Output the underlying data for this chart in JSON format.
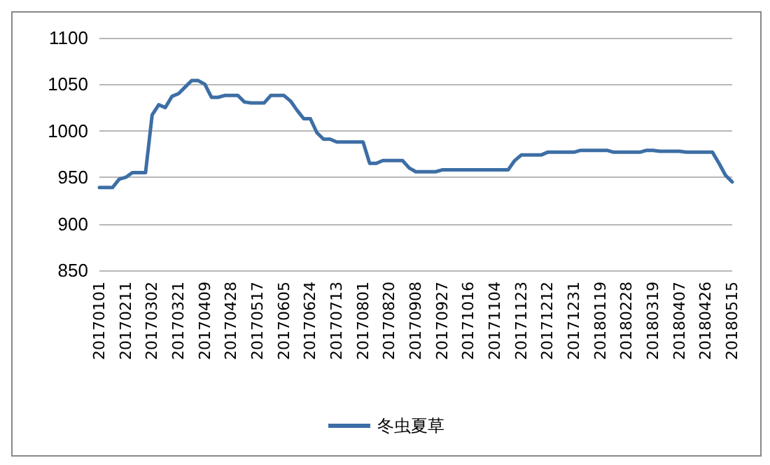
{
  "chart_data": {
    "type": "line",
    "categories": [
      "20170101",
      null,
      null,
      null,
      "20170211",
      null,
      null,
      null,
      "20170302",
      null,
      null,
      null,
      "20170321",
      null,
      null,
      null,
      "20170409",
      null,
      null,
      null,
      "20170428",
      null,
      null,
      null,
      "20170517",
      null,
      null,
      null,
      "20170605",
      null,
      null,
      null,
      "20170624",
      null,
      null,
      null,
      "20170713",
      null,
      null,
      null,
      "20170801",
      null,
      null,
      null,
      "20170820",
      null,
      null,
      null,
      "20170908",
      null,
      null,
      null,
      "20170927",
      null,
      null,
      null,
      "20171016",
      null,
      null,
      null,
      "20171104",
      null,
      null,
      null,
      "20171123",
      null,
      null,
      null,
      "20171212",
      null,
      null,
      null,
      "20171231",
      null,
      null,
      null,
      "20180119",
      null,
      null,
      null,
      "20180228",
      null,
      null,
      null,
      "20180319",
      null,
      null,
      null,
      "20180407",
      null,
      null,
      null,
      "20180426",
      null,
      null,
      null,
      "20180515"
    ],
    "series": [
      {
        "name": "冬虫夏草",
        "color": "#3d6ea5",
        "values": [
          939,
          939,
          939,
          948,
          950,
          955,
          955,
          955,
          1017,
          1028,
          1025,
          1037,
          1040,
          1047,
          1054,
          1054,
          1050,
          1036,
          1036,
          1038,
          1038,
          1038,
          1031,
          1030,
          1030,
          1030,
          1038,
          1038,
          1038,
          1032,
          1022,
          1013,
          1013,
          998,
          991,
          991,
          988,
          988,
          988,
          988,
          988,
          965,
          965,
          968,
          968,
          968,
          968,
          960,
          956,
          956,
          956,
          956,
          958,
          958,
          958,
          958,
          958,
          958,
          958,
          958,
          958,
          958,
          958,
          968,
          974,
          974,
          974,
          974,
          977,
          977,
          977,
          977,
          977,
          979,
          979,
          979,
          979,
          979,
          977,
          977,
          977,
          977,
          977,
          979,
          979,
          978,
          978,
          978,
          978,
          977,
          977,
          977,
          977,
          977,
          965,
          952,
          945
        ]
      }
    ],
    "ylim": [
      850,
      1100
    ],
    "yticks": [
      850,
      900,
      950,
      1000,
      1050,
      1100
    ],
    "grid": "y",
    "legend": "bottom",
    "marker": "none",
    "line_style": "solid"
  }
}
